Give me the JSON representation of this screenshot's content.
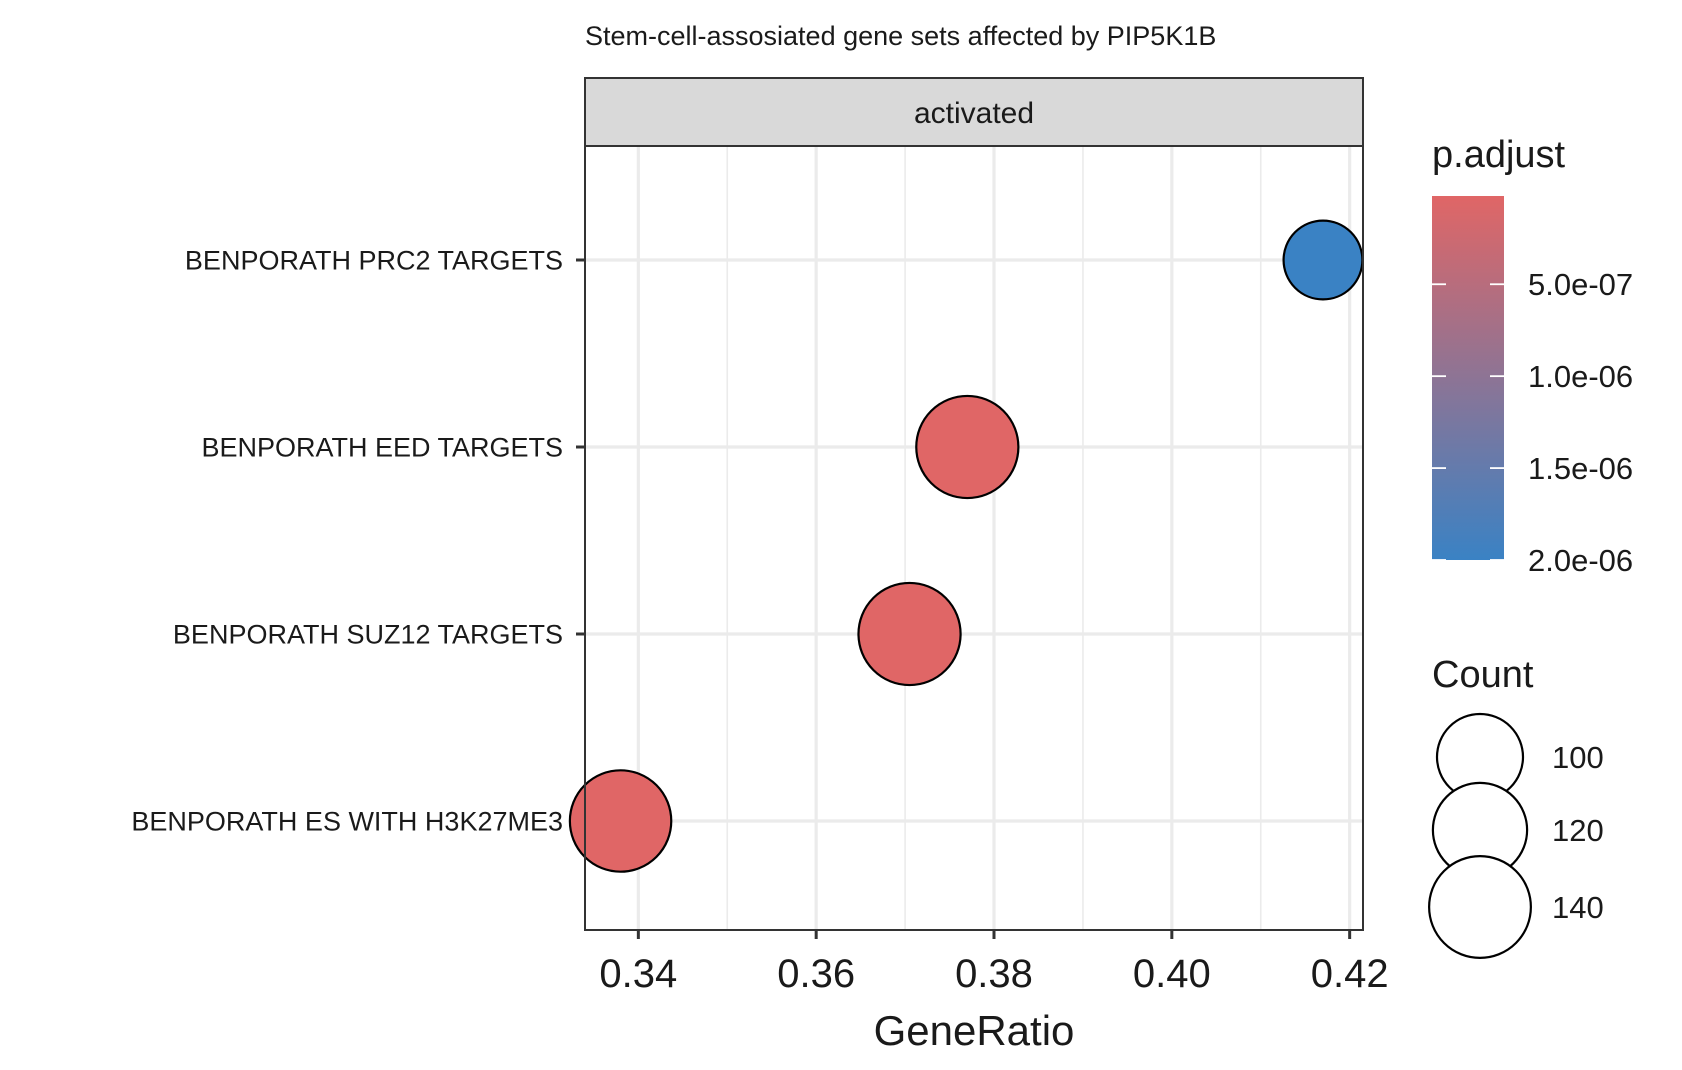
{
  "chart_data": {
    "type": "scatter",
    "title": "Stem-cell-assosiated gene sets affected by PIP5K1B",
    "facet": "activated",
    "xlabel": "GeneRatio",
    "ylabel": "",
    "xlim": [
      0.334,
      0.4215
    ],
    "x_ticks": [
      "0.34",
      "0.36",
      "0.38",
      "0.40",
      "0.42"
    ],
    "x_tick_values": [
      0.34,
      0.36,
      0.38,
      0.4,
      0.42
    ],
    "categories": [
      "BENPORATH PRC2 TARGETS",
      "BENPORATH EED TARGETS",
      "BENPORATH SUZ12 TARGETS",
      "BENPORATH ES WITH H3K27ME3"
    ],
    "points": [
      {
        "category": "BENPORATH PRC2 TARGETS",
        "gene_ratio": 0.417,
        "p_adjust": 2e-06,
        "count": 84
      },
      {
        "category": "BENPORATH EED TARGETS",
        "gene_ratio": 0.377,
        "p_adjust": 2e-08,
        "count": 141
      },
      {
        "category": "BENPORATH SUZ12 TARGETS",
        "gene_ratio": 0.3705,
        "p_adjust": 2e-08,
        "count": 141
      },
      {
        "category": "BENPORATH ES WITH H3K27ME3",
        "gene_ratio": 0.338,
        "p_adjust": 2e-08,
        "count": 139
      }
    ],
    "color_legend": {
      "title": "p.adjust",
      "low_color": "#e06666",
      "high_color": "#3a82c4",
      "range": [
        2e-08,
        2e-06
      ],
      "breaks": [
        5e-07,
        1e-06,
        1.5e-06,
        2e-06
      ],
      "labels": [
        "5.0e-07",
        "1.0e-06",
        "1.5e-06",
        "2.0e-06"
      ]
    },
    "size_legend": {
      "title": "Count",
      "values": [
        100,
        120,
        140
      ],
      "labels": [
        "100",
        "120",
        "140"
      ]
    },
    "grid": true,
    "legend_position": "right"
  }
}
